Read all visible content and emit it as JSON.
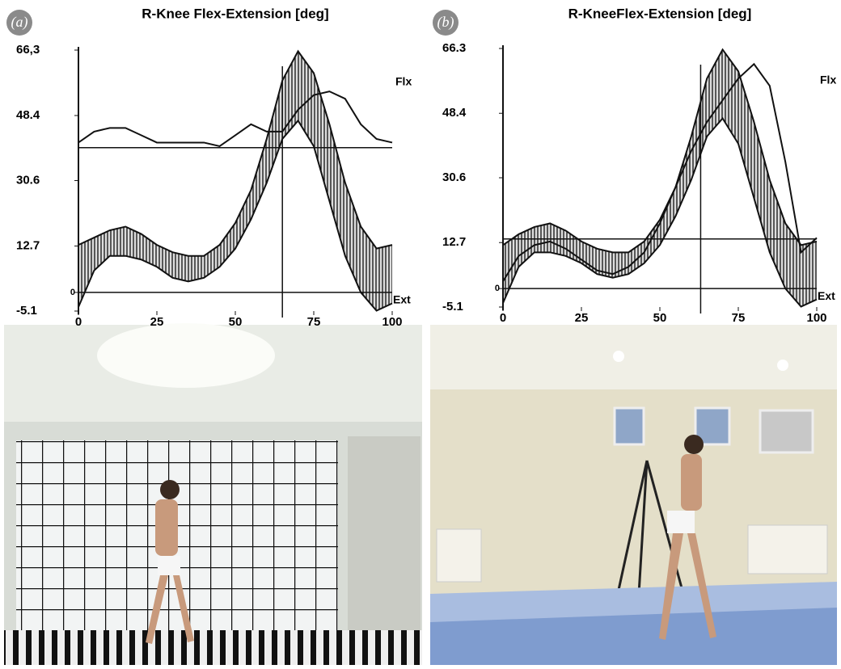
{
  "chart_data": [
    {
      "type": "line",
      "panel_label": "(a)",
      "title": "R-Knee Flex-Extension [deg]",
      "x": [
        0,
        5,
        10,
        15,
        20,
        25,
        30,
        35,
        40,
        45,
        50,
        55,
        60,
        65,
        70,
        75,
        80,
        85,
        90,
        95,
        100
      ],
      "band": {
        "upper": [
          13,
          15,
          17,
          18,
          16,
          13,
          11,
          10,
          10,
          13,
          19,
          28,
          42,
          58,
          66,
          60,
          46,
          30,
          18,
          12,
          13
        ],
        "lower": [
          -4,
          6,
          10,
          10,
          9,
          7,
          4,
          3,
          4,
          7,
          12,
          20,
          30,
          42,
          47,
          40,
          25,
          10,
          0,
          -5,
          -3
        ]
      },
      "series": [
        {
          "color": "#111",
          "values": [
            41,
            44,
            45,
            45,
            43,
            41,
            41,
            41,
            41,
            40,
            43,
            46,
            44,
            44,
            50,
            54,
            55,
            53,
            46,
            42,
            41
          ]
        }
      ],
      "hlines": [
        39.6,
        0
      ],
      "vlines": [
        65
      ],
      "annotations": [
        "Flx",
        "Ext"
      ],
      "xlim": [
        0,
        100
      ],
      "xticks": [
        0,
        25,
        50,
        75,
        100
      ],
      "ylim": [
        -5.1,
        66.3
      ],
      "yticks": [
        -5.1,
        0,
        12.7,
        30.6,
        48.4,
        {
          "value": 66.3,
          "label": "66,3"
        }
      ]
    },
    {
      "type": "line",
      "panel_label": "(b)",
      "title": "R-KneeFlex-Extension [deg]",
      "x": [
        0,
        5,
        10,
        15,
        20,
        25,
        30,
        35,
        40,
        45,
        50,
        55,
        60,
        65,
        70,
        75,
        80,
        85,
        90,
        95,
        100
      ],
      "band": {
        "upper": [
          12,
          15,
          17,
          18,
          16,
          13,
          11,
          10,
          10,
          13,
          19,
          28,
          42,
          58,
          66,
          60,
          46,
          30,
          18,
          12,
          13
        ],
        "lower": [
          -4,
          6,
          10,
          10,
          9,
          7,
          4,
          3,
          4,
          7,
          12,
          20,
          30,
          42,
          47,
          40,
          25,
          10,
          0,
          -5,
          -3
        ]
      },
      "series": [
        {
          "color": "#111",
          "values": [
            2,
            9,
            12,
            13,
            11,
            8,
            5,
            4,
            6,
            10,
            18,
            28,
            38,
            46,
            52,
            58,
            62,
            56,
            35,
            10,
            14
          ]
        }
      ],
      "hlines": [
        13.7,
        0
      ],
      "vlines": [
        63
      ],
      "annotations": [
        "Flx",
        "Ext"
      ],
      "xlim": [
        0,
        100
      ],
      "xticks": [
        0,
        25,
        50,
        75,
        100
      ],
      "ylim": [
        -5.1,
        66.3
      ],
      "yticks": [
        -5.1,
        0,
        12.7,
        30.6,
        48.4,
        66.3
      ]
    }
  ]
}
